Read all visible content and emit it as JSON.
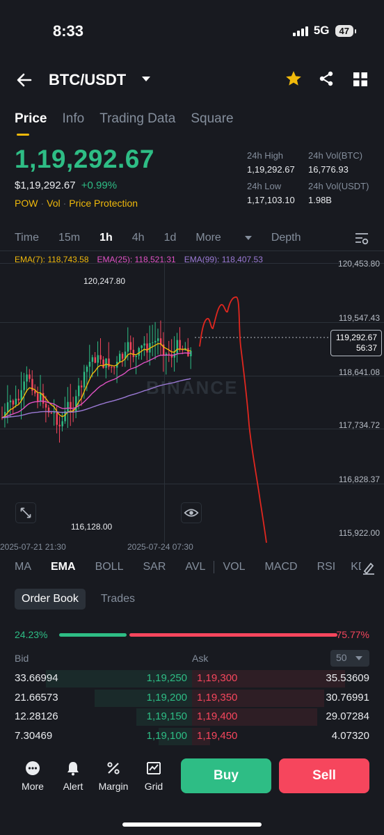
{
  "status_bar": {
    "time": "8:33",
    "network": "5G",
    "battery": "47"
  },
  "header": {
    "pair": "BTC/USDT"
  },
  "tabs": [
    {
      "label": "Price",
      "active": true
    },
    {
      "label": "Info",
      "active": false
    },
    {
      "label": "Trading Data",
      "active": false
    },
    {
      "label": "Square",
      "active": false
    }
  ],
  "price": {
    "last": "1,19,292.67",
    "usd": "$1,19,292.67",
    "change": "+0.99%",
    "tags": [
      "POW",
      "Vol",
      "Price Protection"
    ]
  },
  "stats": [
    {
      "label": "24h High",
      "value": "1,19,292.67"
    },
    {
      "label": "24h Vol(BTC)",
      "value": "16,776.93"
    },
    {
      "label": "24h Low",
      "value": "1,17,103.10"
    },
    {
      "label": "24h Vol(USDT)",
      "value": "1.98B"
    }
  ],
  "intervals": {
    "time": "Time",
    "m15": "15m",
    "h1": "1h",
    "h4": "4h",
    "d1": "1d",
    "more": "More",
    "depth": "Depth"
  },
  "ema_values": {
    "ema7": "EMA(7): 118,743.58",
    "ema25": "EMA(25): 118,521.31",
    "ema99": "EMA(99): 118,407.53"
  },
  "colors": {
    "up": "#2ebd85",
    "down": "#f6465d",
    "accent": "#f0b90b",
    "ema7": "#f0b90b",
    "ema25": "#e052c5",
    "ema99": "#9c7ad6",
    "annotation": "#e0271f"
  },
  "chart_data": {
    "type": "candlestick",
    "y_ticks": [
      "120,453.80",
      "119,547.43",
      "118,641.08",
      "117,734.72",
      "116,828.37",
      "115,922.00"
    ],
    "ylim": [
      115922.0,
      120453.8
    ],
    "x_ticks": [
      "2025-07-21 21:30",
      "2025-07-24 07:30"
    ],
    "high_label": "120,247.80",
    "low_label": "116,128.00",
    "current_price": "119,292.67",
    "countdown": "56:37",
    "watermark": "BINANCE"
  },
  "indicators": [
    "MA",
    "EMA",
    "BOLL",
    "SAR",
    "AVL",
    "VOL",
    "MACD",
    "RSI",
    "KD"
  ],
  "order_book": {
    "tabs": [
      "Order Book",
      "Trades"
    ],
    "bid_ratio": "24.23%",
    "ask_ratio": "75.77%",
    "bid_fraction": 0.2423,
    "bid_label": "Bid",
    "ask_label": "Ask",
    "depth": "50",
    "rows": [
      {
        "bid_qty": "33.66994",
        "bid_price": "1,19,250",
        "ask_price": "1,19,300",
        "ask_qty": "35.53609"
      },
      {
        "bid_qty": "21.66573",
        "bid_price": "1,19,200",
        "ask_price": "1,19,350",
        "ask_qty": "30.76991"
      },
      {
        "bid_qty": "12.28126",
        "bid_price": "1,19,150",
        "ask_price": "1,19,400",
        "ask_qty": "29.07284"
      },
      {
        "bid_qty": "7.30469",
        "bid_price": "1,19,100",
        "ask_price": "1,19,450",
        "ask_qty": "4.07320"
      }
    ]
  },
  "bottom": {
    "more": "More",
    "alert": "Alert",
    "margin": "Margin",
    "grid": "Grid",
    "buy": "Buy",
    "sell": "Sell"
  }
}
